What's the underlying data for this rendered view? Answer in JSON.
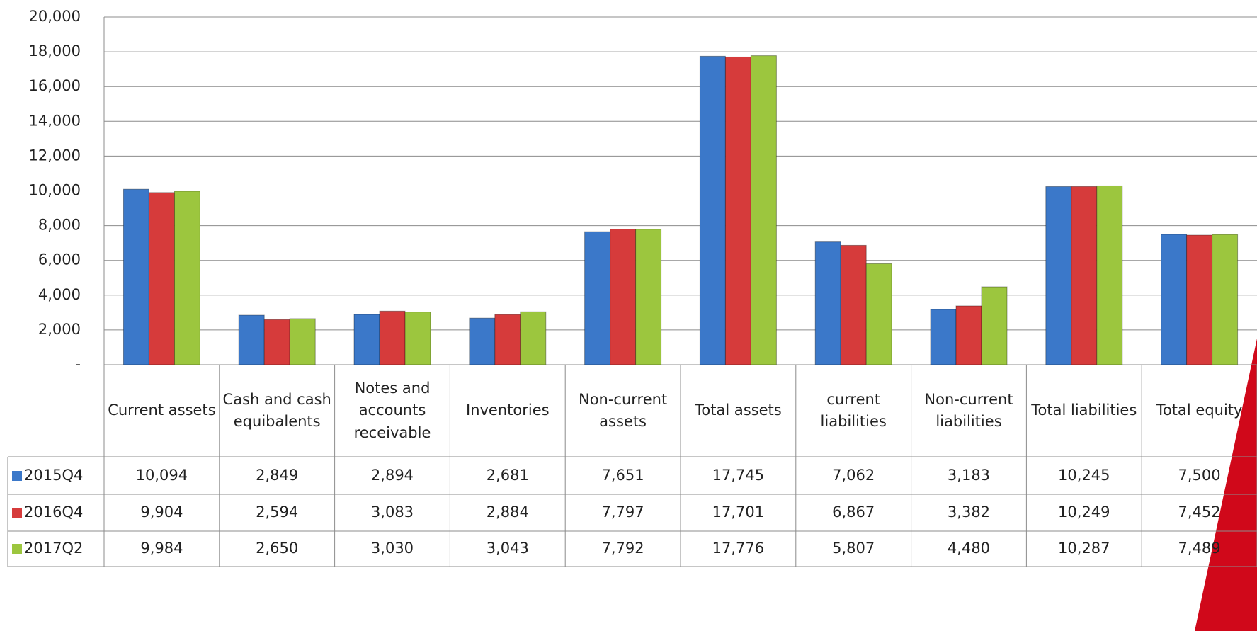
{
  "chart_data": {
    "type": "bar",
    "categories": [
      "Current assets",
      "Cash and cash equibalents",
      "Notes and accounts receivable",
      "Inventories",
      "Non-current assets",
      "Total assets",
      "current liabilities",
      "Non-current liabilities",
      "Total liabilities",
      "Total equity"
    ],
    "series": [
      {
        "name": "2015Q4",
        "color": "#3b78c9",
        "values": [
          10094,
          2849,
          2894,
          2681,
          7651,
          17745,
          7062,
          3183,
          10245,
          7500
        ],
        "value_labels": [
          "10,094",
          "2,849",
          "2,894",
          "2,681",
          "7,651",
          "17,745",
          "7,062",
          "3,183",
          "10,245",
          "7,500"
        ]
      },
      {
        "name": "2016Q4",
        "color": "#d63b3b",
        "values": [
          9904,
          2594,
          3083,
          2884,
          7797,
          17701,
          6867,
          3382,
          10249,
          7452
        ],
        "value_labels": [
          "9,904",
          "2,594",
          "3,083",
          "2,884",
          "7,797",
          "17,701",
          "6,867",
          "3,382",
          "10,249",
          "7,452"
        ]
      },
      {
        "name": "2017Q2",
        "color": "#9cc63e",
        "values": [
          9984,
          2650,
          3030,
          3043,
          7792,
          17776,
          5807,
          4480,
          10287,
          7489
        ],
        "value_labels": [
          "9,984",
          "2,650",
          "3,030",
          "3,043",
          "7,792",
          "17,776",
          "5,807",
          "4,480",
          "10,287",
          "7,489"
        ]
      }
    ],
    "ylim": [
      0,
      20000
    ],
    "yticks": [
      {
        "value": 0,
        "label": "-"
      },
      {
        "value": 2000,
        "label": "2,000"
      },
      {
        "value": 4000,
        "label": "4,000"
      },
      {
        "value": 6000,
        "label": "6,000"
      },
      {
        "value": 8000,
        "label": "8,000"
      },
      {
        "value": 10000,
        "label": "10,000"
      },
      {
        "value": 12000,
        "label": "12,000"
      },
      {
        "value": 14000,
        "label": "14,000"
      },
      {
        "value": 16000,
        "label": "16,000"
      },
      {
        "value": 18000,
        "label": "18,000"
      },
      {
        "value": 20000,
        "label": "20,000"
      }
    ],
    "grid": true
  }
}
